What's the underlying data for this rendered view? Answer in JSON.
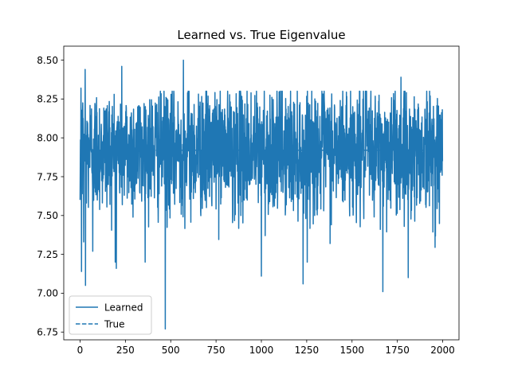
{
  "chart_data": {
    "type": "line",
    "title": "Learned vs. True Eigenvalue",
    "xlabel": "",
    "ylabel": "",
    "xlim": [
      -90,
      2090
    ],
    "ylim": [
      6.7,
      8.59
    ],
    "x_ticks": [
      0,
      250,
      500,
      750,
      1000,
      1250,
      1500,
      1750,
      2000
    ],
    "x_tick_labels": [
      "0",
      "250",
      "500",
      "750",
      "1000",
      "1250",
      "1500",
      "1750",
      "2000"
    ],
    "y_ticks": [
      6.75,
      7.0,
      7.25,
      7.5,
      7.75,
      8.0,
      8.25,
      8.5
    ],
    "y_tick_labels": [
      "6.75",
      "7.00",
      "7.25",
      "7.50",
      "7.75",
      "8.00",
      "8.25",
      "8.50"
    ],
    "grid": false,
    "legend_position": "lower-left",
    "series": [
      {
        "name": "Learned",
        "style": "solid",
        "color": "#1f77b4",
        "n_points": 2000,
        "mean": 7.92,
        "std": 0.2,
        "notable_points": [
          {
            "x": 0,
            "y": 7.6
          },
          {
            "x": 5,
            "y": 8.32
          },
          {
            "x": 8,
            "y": 7.14
          },
          {
            "x": 20,
            "y": 7.33
          },
          {
            "x": 28,
            "y": 8.44
          },
          {
            "x": 30,
            "y": 7.05
          },
          {
            "x": 70,
            "y": 7.27
          },
          {
            "x": 200,
            "y": 7.16
          },
          {
            "x": 230,
            "y": 8.46
          },
          {
            "x": 470,
            "y": 6.77
          },
          {
            "x": 570,
            "y": 8.5
          },
          {
            "x": 1000,
            "y": 7.11
          },
          {
            "x": 1230,
            "y": 7.06
          },
          {
            "x": 1670,
            "y": 7.01
          },
          {
            "x": 1770,
            "y": 8.39
          },
          {
            "x": 1810,
            "y": 7.1
          },
          {
            "x": 2000,
            "y": 7.85
          }
        ]
      },
      {
        "name": "True",
        "style": "dashed",
        "color": "#1f77b4",
        "value": 7.92
      }
    ]
  }
}
